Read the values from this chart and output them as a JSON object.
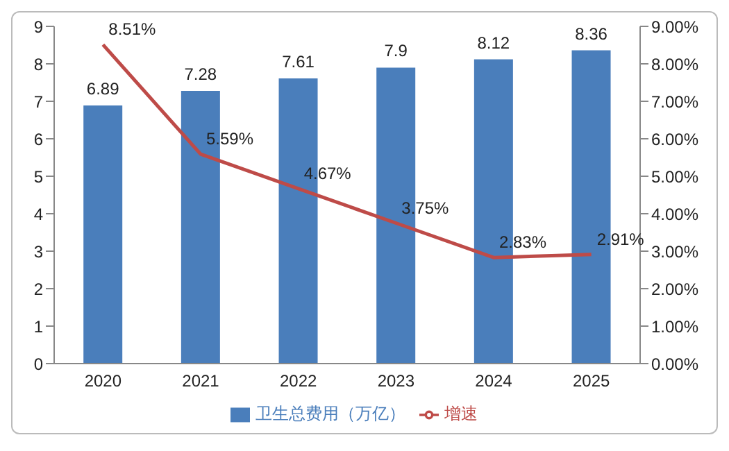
{
  "chart_data": {
    "type": "bar",
    "categories": [
      "2020",
      "2021",
      "2022",
      "2023",
      "2024",
      "2025"
    ],
    "series": [
      {
        "name": "卫生总费用（万亿）",
        "color": "#4a7ebb",
        "values": [
          6.89,
          7.28,
          7.61,
          7.9,
          8.12,
          8.36
        ],
        "value_labels": [
          "6.89",
          "7.28",
          "7.61",
          "7.9",
          "8.12",
          "8.36"
        ]
      },
      {
        "name": "增速",
        "type": "line",
        "axis": "y2",
        "color": "#be4b48",
        "values": [
          8.51,
          5.59,
          4.67,
          3.75,
          2.83,
          2.91
        ],
        "value_labels": [
          "8.51%",
          "5.59%",
          "4.67%",
          "3.75%",
          "2.83%",
          "2.91%"
        ]
      }
    ],
    "ylim": [
      0,
      9
    ],
    "yticks": [
      0,
      1,
      2,
      3,
      4,
      5,
      6,
      7,
      8,
      9
    ],
    "y2lim": [
      0,
      9
    ],
    "y2ticks": [
      {
        "value": 0,
        "label": "0.00%"
      },
      {
        "value": 1,
        "label": "1.00%"
      },
      {
        "value": 2,
        "label": "2.00%"
      },
      {
        "value": 3,
        "label": "3.00%"
      },
      {
        "value": 4,
        "label": "4.00%"
      },
      {
        "value": 5,
        "label": "5.00%"
      },
      {
        "value": 6,
        "label": "6.00%"
      },
      {
        "value": 7,
        "label": "7.00%"
      },
      {
        "value": 8,
        "label": "8.00%"
      },
      {
        "value": 9,
        "label": "9.00%"
      }
    ],
    "legend": "bottom",
    "marker": "none",
    "grid": false
  }
}
